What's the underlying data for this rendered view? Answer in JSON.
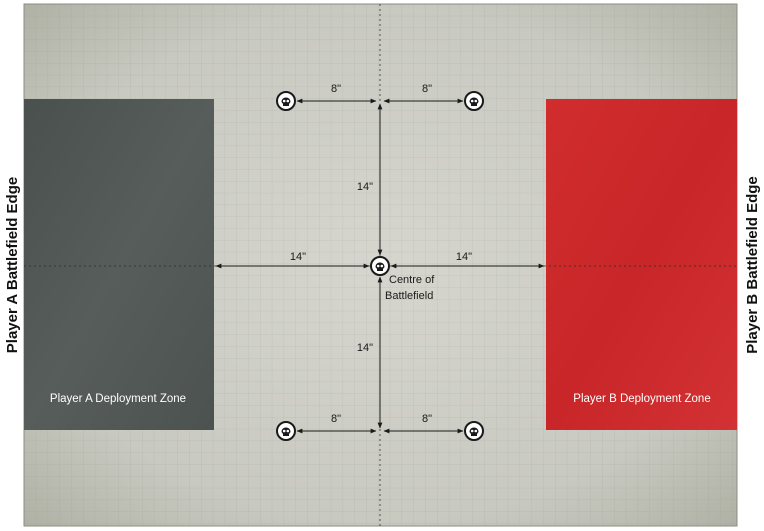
{
  "battlefield": {
    "edge_left_label": "Player A Battlefield Edge",
    "edge_right_label": "Player B Battlefield Edge",
    "centre_label_line1": "Centre of",
    "centre_label_line2": "Battlefield"
  },
  "zones": {
    "player_a": {
      "label": "Player A Deployment Zone",
      "color": "#4f5553"
    },
    "player_b": {
      "label": "Player B Deployment Zone",
      "color": "#cf2a2c"
    }
  },
  "measurements": {
    "top_left": "8\"",
    "top_right": "8\"",
    "upper_vertical": "14\"",
    "left_horizontal": "14\"",
    "right_horizontal": "14\"",
    "lower_vertical": "14\"",
    "bottom_left": "8\"",
    "bottom_right": "8\""
  },
  "objective_icon": "skull-objective-icon",
  "colors": {
    "board": "#cfcfc7",
    "grid": "#9aa09a",
    "text": "#1a1a1a"
  }
}
